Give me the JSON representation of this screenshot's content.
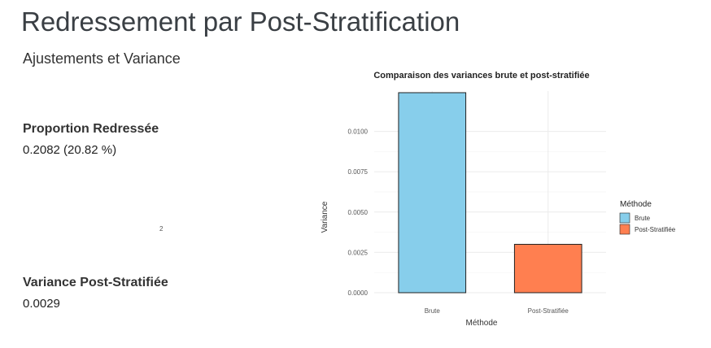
{
  "page": {
    "title": "Redressement par Post-Stratification",
    "subtitle": "Ajustements et Variance",
    "stats": [
      {
        "label": "Proportion Redressée",
        "value": "0.2082 (20.82 %)"
      },
      {
        "label": "Variance Post-Stratifiée",
        "value": "0.0029"
      }
    ],
    "footnote": "2"
  },
  "chart_data": {
    "type": "bar",
    "title": "Comparaison des variances brute et post-stratifiée",
    "xlabel": "Méthode",
    "ylabel": "Variance",
    "categories": [
      "Brute",
      "Post-Stratifiée"
    ],
    "values": [
      0.0124,
      0.003
    ],
    "colors": [
      "#87CEEB",
      "#FF7F50"
    ],
    "ylim": [
      0,
      0.0125
    ],
    "yticks": [
      "0.0000",
      "0.0025",
      "0.0050",
      "0.0075",
      "0.0100"
    ],
    "ytick_values": [
      0,
      0.0025,
      0.005,
      0.0075,
      0.01
    ],
    "grid": true,
    "legend": {
      "title": "Méthode",
      "position": "right",
      "items": [
        "Brute",
        "Post-Stratifiée"
      ]
    }
  }
}
